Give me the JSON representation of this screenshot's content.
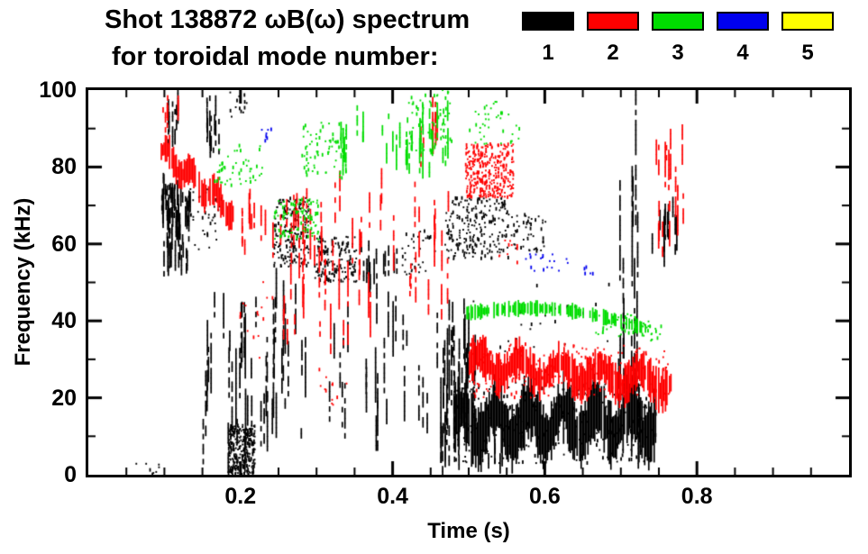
{
  "title": {
    "line1": "Shot 138872 ωB(ω) spectrum",
    "line2": "for toroidal mode number:"
  },
  "legend": {
    "modes": [
      {
        "label": "1",
        "color": "#000000"
      },
      {
        "label": "2",
        "color": "#ff0000"
      },
      {
        "label": "3",
        "color": "#00dd00"
      },
      {
        "label": "4",
        "color": "#0000ee"
      },
      {
        "label": "5",
        "color": "#ffff00"
      }
    ]
  },
  "chart_data": {
    "type": "scatter",
    "subtype": "mode-spectrogram",
    "title": "Shot 138872 ωB(ω) spectrum for toroidal mode number: 1 2 3 4 5",
    "xlabel": "Time (s)",
    "ylabel": "Frequency (kHz)",
    "xlim": [
      0,
      1
    ],
    "ylim": [
      0,
      100
    ],
    "xticks": [
      "0.2",
      "0.4",
      "0.6",
      "0.8"
    ],
    "xtick_values": [
      0.2,
      0.4,
      0.6,
      0.8
    ],
    "yticks": [
      "0",
      "20",
      "40",
      "60",
      "80",
      "100"
    ],
    "ytick_values": [
      0,
      20,
      40,
      60,
      80,
      100
    ],
    "x_minor_step": 0.05,
    "y_minor_step": 10,
    "grid": false,
    "legend_position": "top-right",
    "mode_colors": {
      "1": "#000000",
      "2": "#ff0000",
      "3": "#00dd00",
      "4": "#0000ee",
      "5": "#ffff00"
    },
    "clusters": [
      {
        "mode": 1,
        "type": "vstreaks",
        "t": [
          0.095,
          0.135
        ],
        "f": [
          52,
          78
        ],
        "n": 55,
        "seg": 9
      },
      {
        "mode": 1,
        "type": "vstreaks",
        "t": [
          0.1,
          0.118
        ],
        "f": [
          85,
          100
        ],
        "n": 6,
        "seg": 10
      },
      {
        "mode": 1,
        "type": "vstreaks",
        "t": [
          0.155,
          0.178
        ],
        "f": [
          80,
          100
        ],
        "n": 10,
        "seg": 13
      },
      {
        "mode": 1,
        "type": "dots",
        "t": [
          0.128,
          0.178
        ],
        "f": [
          58,
          75
        ],
        "n": 40
      },
      {
        "mode": 1,
        "type": "vstreaks",
        "t": [
          0.15,
          0.178
        ],
        "f": [
          0,
          50
        ],
        "n": 8,
        "seg": 18
      },
      {
        "mode": 1,
        "type": "vstreaks",
        "t": [
          0.18,
          0.235
        ],
        "f": [
          0,
          48
        ],
        "n": 22,
        "seg": 18
      },
      {
        "mode": 1,
        "type": "dots",
        "t": [
          0.183,
          0.218
        ],
        "f": [
          0,
          13
        ],
        "n": 280,
        "size": 2
      },
      {
        "mode": 1,
        "type": "vstreaks",
        "t": [
          0.24,
          0.285
        ],
        "f": [
          0,
          55
        ],
        "n": 18,
        "seg": 16
      },
      {
        "mode": 1,
        "type": "dots",
        "t": [
          0.243,
          0.29
        ],
        "f": [
          54,
          72
        ],
        "n": 190
      },
      {
        "mode": 1,
        "type": "dots",
        "t": [
          0.295,
          0.352
        ],
        "f": [
          50,
          62
        ],
        "n": 150
      },
      {
        "mode": 1,
        "type": "vstreaks",
        "t": [
          0.3,
          0.46
        ],
        "f": [
          5,
          52
        ],
        "n": 26,
        "seg": 14
      },
      {
        "mode": 1,
        "type": "vstreaks",
        "t": [
          0.35,
          0.41
        ],
        "f": [
          48,
          62
        ],
        "n": 14,
        "seg": 8
      },
      {
        "mode": 1,
        "type": "dots",
        "t": [
          0.41,
          0.455
        ],
        "f": [
          52,
          64
        ],
        "n": 35
      },
      {
        "mode": 1,
        "type": "vstreaks",
        "t": [
          0.462,
          0.508
        ],
        "f": [
          0,
          48
        ],
        "n": 32,
        "seg": 24
      },
      {
        "mode": 1,
        "type": "dots",
        "t": [
          0.468,
          0.552
        ],
        "f": [
          56,
          72
        ],
        "n": 220
      },
      {
        "mode": 1,
        "type": "band",
        "t": [
          0.478,
          0.745
        ],
        "c": [
          13,
          14
        ],
        "th": 13,
        "wave": 4,
        "wf": 6
      },
      {
        "mode": 1,
        "type": "dots",
        "t": [
          0.478,
          0.745
        ],
        "f": [
          3,
          24
        ],
        "n": 260
      },
      {
        "mode": 1,
        "type": "vstreaks",
        "t": [
          0.695,
          0.723
        ],
        "f": [
          0,
          100
        ],
        "n": 16,
        "seg": 32
      },
      {
        "mode": 1,
        "type": "vstreaks",
        "t": [
          0.74,
          0.775
        ],
        "f": [
          52,
          72
        ],
        "n": 12,
        "seg": 10
      },
      {
        "mode": 1,
        "type": "dots",
        "t": [
          0.5,
          0.69
        ],
        "f": [
          30,
          52
        ],
        "n": 28
      },
      {
        "mode": 1,
        "type": "dots",
        "t": [
          0.553,
          0.6
        ],
        "f": [
          58,
          68
        ],
        "n": 50
      },
      {
        "mode": 1,
        "type": "dots",
        "t": [
          0.06,
          0.095
        ],
        "f": [
          0,
          3
        ],
        "n": 8
      },
      {
        "mode": 1,
        "type": "dots",
        "t": [
          0.185,
          0.208
        ],
        "f": [
          93,
          100
        ],
        "n": 14
      },
      {
        "mode": 1,
        "type": "vstreaks",
        "t": [
          0.52,
          0.548
        ],
        "f": [
          0,
          10
        ],
        "n": 6,
        "seg": 7
      },
      {
        "mode": 2,
        "type": "band",
        "t": [
          0.095,
          0.19
        ],
        "c": [
          84,
          68
        ],
        "th": 6,
        "wave": 2,
        "wf": 3
      },
      {
        "mode": 2,
        "type": "vstreaks",
        "t": [
          0.095,
          0.118
        ],
        "f": [
          88,
          100
        ],
        "n": 6,
        "seg": 9
      },
      {
        "mode": 2,
        "type": "vstreaks",
        "t": [
          0.19,
          0.31
        ],
        "f": [
          55,
          76
        ],
        "n": 22,
        "seg": 10
      },
      {
        "mode": 2,
        "type": "vstreaks",
        "t": [
          0.25,
          0.475
        ],
        "f": [
          30,
          80
        ],
        "n": 50,
        "seg": 13
      },
      {
        "mode": 2,
        "type": "dots",
        "t": [
          0.19,
          0.245
        ],
        "f": [
          30,
          55
        ],
        "n": 15
      },
      {
        "mode": 2,
        "type": "dots",
        "t": [
          0.495,
          0.558
        ],
        "f": [
          72,
          86
        ],
        "n": 320,
        "size": 2
      },
      {
        "mode": 2,
        "type": "band",
        "t": [
          0.5,
          0.765
        ],
        "c": [
          29,
          24
        ],
        "th": 8,
        "wave": 2.5,
        "wf": 5
      },
      {
        "mode": 2,
        "type": "dots",
        "t": [
          0.5,
          0.765
        ],
        "f": [
          20,
          34
        ],
        "n": 160
      },
      {
        "mode": 2,
        "type": "vstreaks",
        "t": [
          0.745,
          0.782
        ],
        "f": [
          55,
          92
        ],
        "n": 14,
        "seg": 14
      },
      {
        "mode": 2,
        "type": "dots",
        "t": [
          0.3,
          0.345
        ],
        "f": [
          18,
          30
        ],
        "n": 12
      },
      {
        "mode": 2,
        "type": "vstreaks",
        "t": [
          0.43,
          0.468
        ],
        "f": [
          80,
          100
        ],
        "n": 8,
        "seg": 10
      },
      {
        "mode": 2,
        "type": "dots",
        "t": [
          0.53,
          0.565
        ],
        "f": [
          55,
          62
        ],
        "n": 10
      },
      {
        "mode": 3,
        "type": "dots",
        "t": [
          0.165,
          0.228
        ],
        "f": [
          75,
          86
        ],
        "n": 50
      },
      {
        "mode": 3,
        "type": "dots",
        "t": [
          0.243,
          0.302
        ],
        "f": [
          61,
          72
        ],
        "n": 100
      },
      {
        "mode": 3,
        "type": "dots",
        "t": [
          0.28,
          0.338
        ],
        "f": [
          77,
          92
        ],
        "n": 75
      },
      {
        "mode": 3,
        "type": "vstreaks",
        "t": [
          0.33,
          0.472
        ],
        "f": [
          77,
          97
        ],
        "n": 42,
        "seg": 8
      },
      {
        "mode": 3,
        "type": "dots",
        "t": [
          0.42,
          0.478
        ],
        "f": [
          84,
          100
        ],
        "n": 65
      },
      {
        "mode": 3,
        "type": "dots",
        "t": [
          0.5,
          0.568
        ],
        "f": [
          85,
          97
        ],
        "n": 38
      },
      {
        "mode": 3,
        "type": "band",
        "t": [
          0.495,
          0.732
        ],
        "c": [
          42,
          38
        ],
        "th": 3,
        "wave": 3,
        "wf": 0.5,
        "gap": 0.35
      },
      {
        "mode": 3,
        "type": "dots",
        "t": [
          0.665,
          0.738
        ],
        "f": [
          36,
          42
        ],
        "n": 45
      },
      {
        "mode": 3,
        "type": "dots",
        "t": [
          0.728,
          0.757
        ],
        "f": [
          34,
          39
        ],
        "n": 14
      },
      {
        "mode": 4,
        "type": "dots",
        "t": [
          0.225,
          0.24
        ],
        "f": [
          86,
          90
        ],
        "n": 7
      },
      {
        "mode": 4,
        "type": "dots",
        "t": [
          0.572,
          0.63
        ],
        "f": [
          53,
          58
        ],
        "n": 18
      },
      {
        "mode": 4,
        "type": "dots",
        "t": [
          0.648,
          0.663
        ],
        "f": [
          51,
          54
        ],
        "n": 5
      }
    ]
  }
}
